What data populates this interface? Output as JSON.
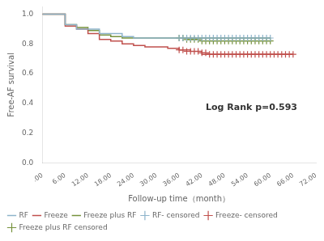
{
  "chart_data": {
    "type": "line",
    "xlabel": "Follow-up time（month）",
    "ylabel": "Free-AF survival",
    "xlim": [
      0,
      72
    ],
    "ylim": [
      0.0,
      1.05
    ],
    "xticks": [
      {
        "value": 0,
        "label": ".00"
      },
      {
        "value": 6,
        "label": "6.00"
      },
      {
        "value": 12,
        "label": "12.00"
      },
      {
        "value": 18,
        "label": "18.00"
      },
      {
        "value": 24,
        "label": "24.00"
      },
      {
        "value": 30,
        "label": "30.00"
      },
      {
        "value": 36,
        "label": "36.00"
      },
      {
        "value": 42,
        "label": "42.00"
      },
      {
        "value": 48,
        "label": "48.00"
      },
      {
        "value": 54,
        "label": "54.00"
      },
      {
        "value": 60,
        "label": "60.00"
      },
      {
        "value": 66,
        "label": "66.00"
      },
      {
        "value": 72,
        "label": "72.00"
      }
    ],
    "yticks": [
      {
        "value": 0.0,
        "label": "0.0"
      },
      0.2,
      0.4,
      0.6,
      0.8,
      {
        "value": 1.0,
        "label": "1.0"
      }
    ],
    "grid": false,
    "legend": "lower left",
    "annotations": [
      {
        "text": "Log Rank p=0.593",
        "x": 43,
        "y": 0.37
      }
    ],
    "series": [
      {
        "name": "RF",
        "type": "line",
        "line_style": "step",
        "color": "#8eb4cb",
        "x": [
          0,
          6,
          6,
          9,
          9,
          12,
          12,
          15,
          15,
          18,
          18,
          21,
          21,
          24,
          24,
          30,
          30,
          36,
          36,
          60
        ],
        "values": [
          1.0,
          1.0,
          0.93,
          0.93,
          0.9,
          0.9,
          0.9,
          0.9,
          0.87,
          0.87,
          0.87,
          0.87,
          0.85,
          0.85,
          0.84,
          0.84,
          0.84,
          0.84,
          0.84,
          0.84
        ]
      },
      {
        "name": "Freeze",
        "type": "line",
        "line_style": "step",
        "color": "#c0504d",
        "x": [
          0,
          6,
          6,
          9,
          9,
          12,
          12,
          15,
          15,
          18,
          18,
          21,
          21,
          24,
          24,
          27,
          27,
          30,
          30,
          33,
          33,
          36,
          36,
          39,
          39,
          42,
          42,
          45,
          45,
          66
        ],
        "values": [
          1.0,
          1.0,
          0.92,
          0.92,
          0.9,
          0.9,
          0.87,
          0.87,
          0.83,
          0.83,
          0.82,
          0.82,
          0.8,
          0.8,
          0.79,
          0.79,
          0.78,
          0.78,
          0.78,
          0.78,
          0.77,
          0.77,
          0.76,
          0.76,
          0.75,
          0.75,
          0.73,
          0.73,
          0.73,
          0.73
        ]
      },
      {
        "name": "Freeze plus RF",
        "type": "line",
        "line_style": "step",
        "color": "#76923c",
        "x": [
          0,
          6,
          6,
          9,
          9,
          12,
          12,
          15,
          15,
          18,
          18,
          21,
          21,
          24,
          24,
          30,
          30,
          33,
          33,
          36,
          36,
          60
        ],
        "values": [
          1.0,
          1.0,
          0.93,
          0.93,
          0.91,
          0.91,
          0.89,
          0.89,
          0.86,
          0.86,
          0.85,
          0.85,
          0.84,
          0.84,
          0.84,
          0.84,
          0.84,
          0.84,
          0.84,
          0.84,
          0.84,
          0.84
        ]
      },
      {
        "name": "RF- censored",
        "type": "scatter",
        "marker": "+",
        "color": "#8eb4cb",
        "x": [
          36,
          37,
          38,
          39,
          40,
          41,
          42,
          43,
          44,
          45,
          46,
          47,
          48,
          49,
          50,
          51,
          52,
          53,
          54,
          55,
          56,
          57,
          58,
          59,
          60
        ],
        "values": [
          0.84,
          0.84,
          0.84,
          0.84,
          0.84,
          0.84,
          0.84,
          0.84,
          0.84,
          0.84,
          0.84,
          0.84,
          0.84,
          0.84,
          0.84,
          0.84,
          0.84,
          0.84,
          0.84,
          0.84,
          0.84,
          0.84,
          0.84,
          0.84,
          0.84
        ]
      },
      {
        "name": "Freeze- censored",
        "type": "scatter",
        "marker": "+",
        "color": "#c0504d",
        "x": [
          36,
          37,
          38,
          39,
          40,
          41,
          42,
          43,
          44,
          45,
          46,
          47,
          48,
          49,
          50,
          51,
          52,
          53,
          54,
          55,
          56,
          57,
          58,
          59,
          60,
          61,
          62,
          63,
          64,
          65,
          66
        ],
        "values": [
          0.76,
          0.76,
          0.75,
          0.75,
          0.75,
          0.75,
          0.74,
          0.74,
          0.73,
          0.73,
          0.73,
          0.73,
          0.73,
          0.73,
          0.73,
          0.73,
          0.73,
          0.73,
          0.73,
          0.73,
          0.73,
          0.73,
          0.73,
          0.73,
          0.73,
          0.73,
          0.73,
          0.73,
          0.73,
          0.73,
          0.73
        ]
      },
      {
        "name": "Freeze plus RF censored",
        "type": "scatter",
        "marker": "+",
        "color": "#76923c",
        "x": [
          36,
          37,
          38,
          39,
          40,
          41,
          42,
          43,
          44,
          45,
          46,
          47,
          48,
          49,
          50,
          51,
          52,
          53,
          54,
          55,
          56,
          57,
          58,
          59,
          60
        ],
        "values": [
          0.84,
          0.84,
          0.83,
          0.83,
          0.83,
          0.83,
          0.82,
          0.82,
          0.82,
          0.82,
          0.82,
          0.82,
          0.82,
          0.82,
          0.82,
          0.82,
          0.82,
          0.82,
          0.82,
          0.82,
          0.82,
          0.82,
          0.82,
          0.82,
          0.82
        ]
      }
    ]
  }
}
